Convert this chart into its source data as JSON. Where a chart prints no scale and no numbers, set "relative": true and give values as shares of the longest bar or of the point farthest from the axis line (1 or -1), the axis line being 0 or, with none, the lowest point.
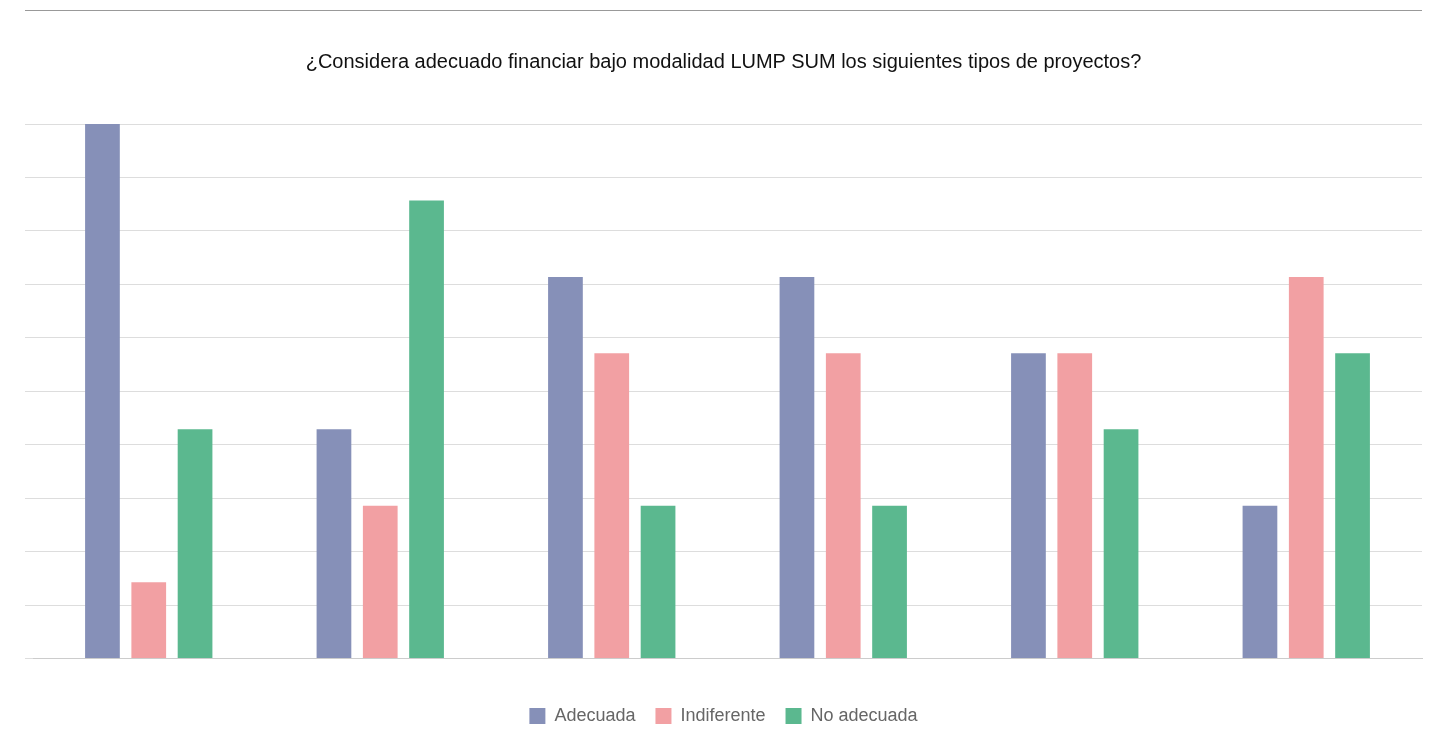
{
  "chart_data": {
    "type": "bar",
    "title": "¿Considera adecuado financiar bajo modalidad LUMP SUM los siguientes tipos de proyectos?",
    "relative": true,
    "categories": [
      null,
      null,
      null,
      null,
      null,
      null
    ],
    "series": [
      {
        "name": "Adecuada",
        "color": "#8690b8",
        "values": [
          1,
          0.429,
          0.714,
          0.714,
          0.571,
          0.286
        ]
      },
      {
        "name": "Indiferente",
        "color": "#f2a0a3",
        "values": [
          0.143,
          0.286,
          0.571,
          0.571,
          0.571,
          0.714
        ]
      },
      {
        "name": "No adecuada",
        "color": "#5bb88f",
        "values": [
          0.429,
          0.857,
          0.286,
          0.286,
          0.429,
          0.571
        ]
      }
    ],
    "grid": "y",
    "legend": "bottom"
  }
}
